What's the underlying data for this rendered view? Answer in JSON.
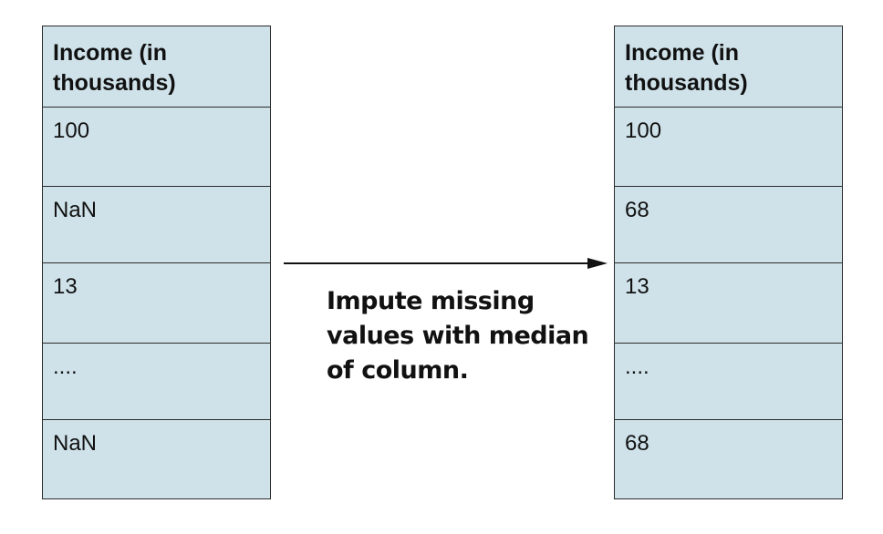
{
  "left_table": {
    "header": "Income (in thousands)",
    "rows": [
      "100",
      "NaN",
      "13",
      "....",
      "NaN"
    ]
  },
  "right_table": {
    "header": "Income (in thousands)",
    "rows": [
      "100",
      "68",
      "13",
      "....",
      "68"
    ]
  },
  "caption": "Impute missing values with median of column.",
  "colors": {
    "cell_fill": "#cfe2ea",
    "border": "#2b2b2b",
    "text": "#111111"
  },
  "icons": {
    "arrow": "right-arrow-icon"
  }
}
